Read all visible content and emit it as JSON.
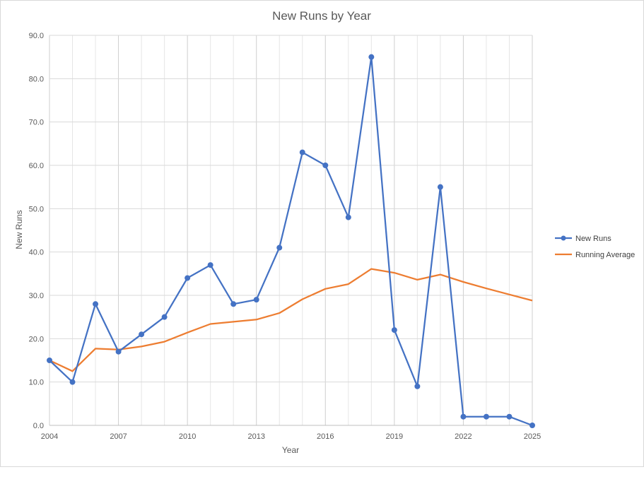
{
  "chart_data": {
    "type": "line",
    "title": "New Runs by Year",
    "xlabel": "Year",
    "ylabel": "New Runs",
    "xlim": [
      2004,
      2025
    ],
    "ylim": [
      0,
      90
    ],
    "y_ticks": [
      0,
      10,
      20,
      30,
      40,
      50,
      60,
      70,
      80,
      90
    ],
    "y_tick_labels": [
      "0.0",
      "10.0",
      "20.0",
      "30.0",
      "40.0",
      "50.0",
      "60.0",
      "70.0",
      "80.0",
      "90.0"
    ],
    "x_ticks": [
      2004,
      2007,
      2010,
      2013,
      2016,
      2019,
      2022,
      2025
    ],
    "x_tick_labels": [
      "2004",
      "2007",
      "2010",
      "2013",
      "2016",
      "2019",
      "2022",
      "2025"
    ],
    "grid": true,
    "legend_position": "right",
    "x": [
      2004,
      2005,
      2006,
      2007,
      2008,
      2009,
      2010,
      2011,
      2012,
      2013,
      2014,
      2015,
      2016,
      2017,
      2018,
      2019,
      2020,
      2021,
      2022,
      2023,
      2024,
      2025
    ],
    "series": [
      {
        "name": "New Runs",
        "color": "#4472c4",
        "markers": true,
        "values": [
          15,
          10,
          28,
          17,
          21,
          25,
          34,
          37,
          28,
          29,
          41,
          63,
          60,
          48,
          85,
          22,
          9,
          55,
          2,
          2,
          2,
          0
        ]
      },
      {
        "name": "Running Average",
        "color": "#ed7d31",
        "markers": false,
        "values": [
          15,
          12.5,
          17.7,
          17.5,
          18.2,
          19.3,
          21.4,
          23.4,
          23.9,
          24.4,
          25.9,
          29.1,
          31.5,
          32.6,
          36.1,
          35.2,
          33.6,
          34.8,
          33.1,
          31.6,
          30.2,
          28.8
        ]
      }
    ]
  }
}
